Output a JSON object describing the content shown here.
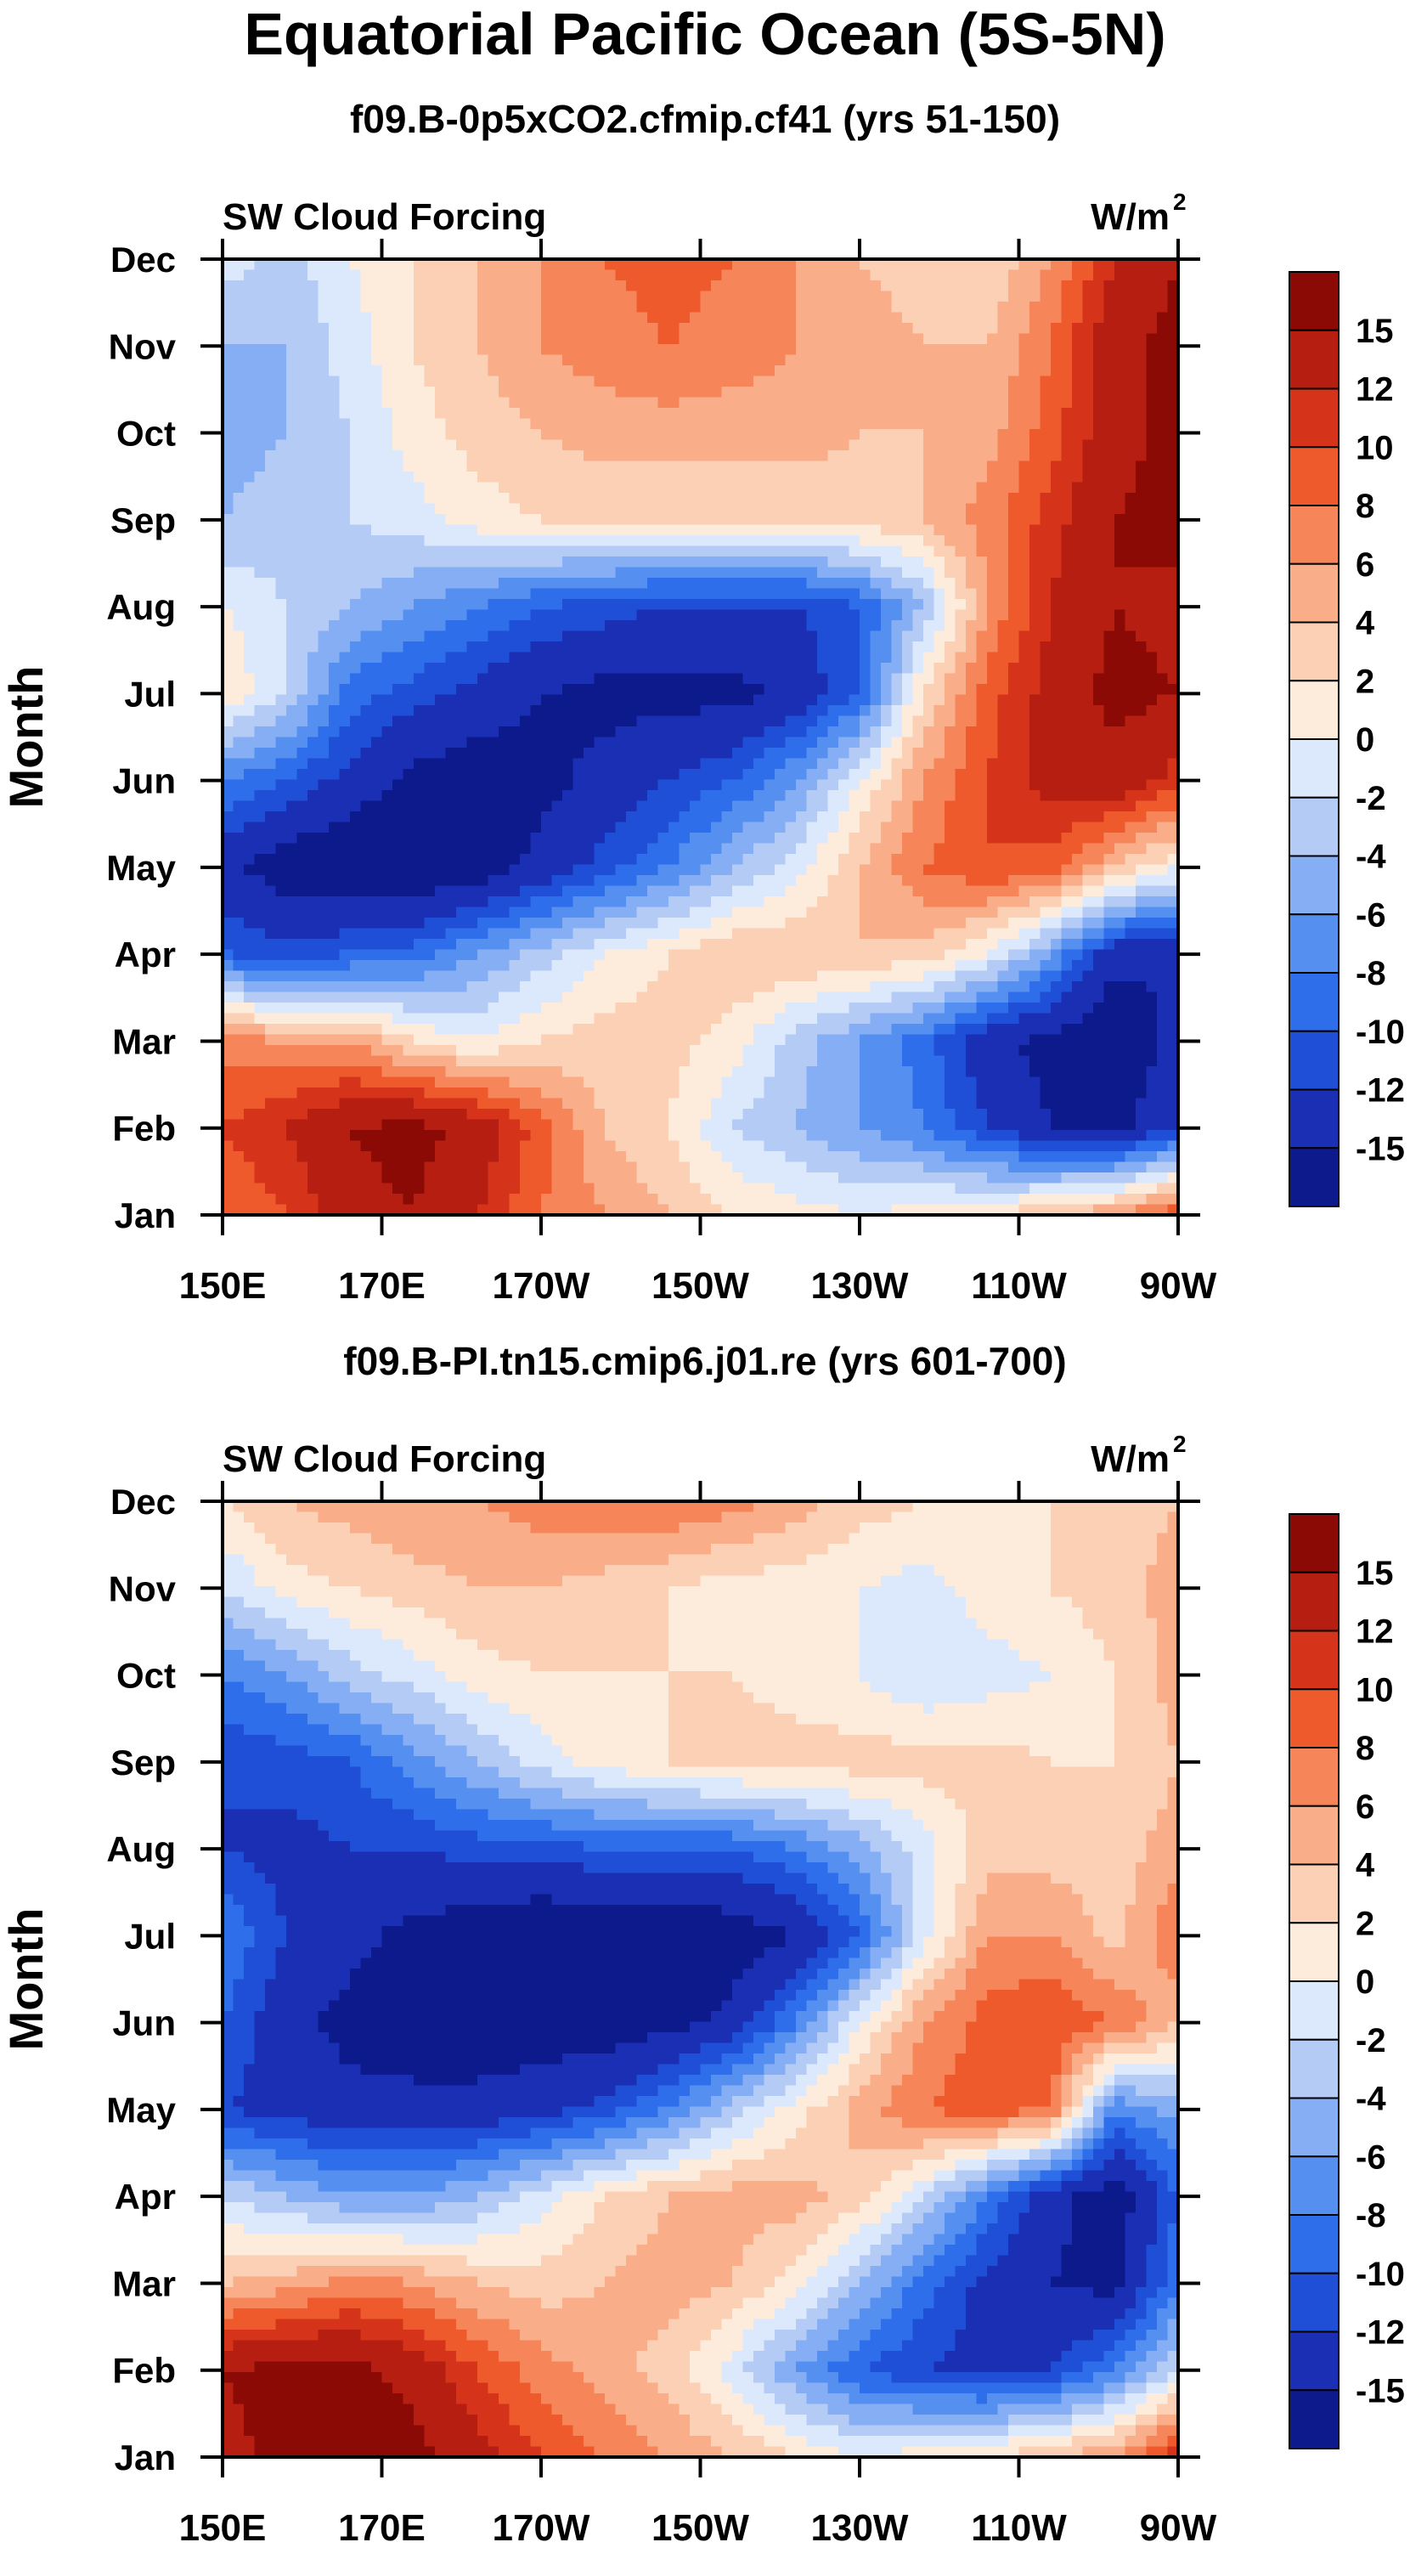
{
  "title": "Equatorial Pacific Ocean (5S-5N)",
  "colorbar": {
    "colors": [
      "#0d1a8c",
      "#1a2fb3",
      "#1f4fd6",
      "#2f6eeb",
      "#5590f0",
      "#86aef4",
      "#b4cbf6",
      "#dce8fb",
      "#fdebdc",
      "#fcd0b5",
      "#f9ad88",
      "#f6865a",
      "#ef5a2c",
      "#d5341a",
      "#b51e10",
      "#8b0a06"
    ],
    "labels": [
      "15",
      "12",
      "10",
      "8",
      "6",
      "4",
      "2",
      "0",
      "-2",
      "-4",
      "-6",
      "-8",
      "-10",
      "-12",
      "-15"
    ]
  },
  "chart_data": [
    {
      "type": "heatmap",
      "title": "f09.B-0p5xCO2.cfmip.cf41 (yrs 51-150)",
      "left_label": "SW Cloud Forcing",
      "units_label": "W/m",
      "units_sup": "2",
      "ylabel": "Month",
      "x_tick_labels": [
        "150E",
        "170E",
        "170W",
        "150W",
        "130W",
        "110W",
        "90W"
      ],
      "y_tick_labels": [
        "Dec",
        "Nov",
        "Oct",
        "Sep",
        "Aug",
        "Jul",
        "Jun",
        "May",
        "Apr",
        "Mar",
        "Feb",
        "Jan"
      ],
      "x_range": [
        "150E",
        "90W"
      ],
      "y_range": [
        "Jan",
        "Dec"
      ],
      "levels": [
        -15,
        -12,
        -10,
        -8,
        -6,
        -4,
        -2,
        0,
        2,
        4,
        6,
        8,
        10,
        12,
        15
      ],
      "grid": [
        [
          -1,
          -3,
          0,
          2,
          4,
          6,
          8,
          9,
          8,
          6,
          4,
          3,
          2,
          6,
          12,
          15
        ],
        [
          -4,
          -4,
          -1,
          2,
          4,
          6,
          7,
          8,
          7,
          6,
          5,
          4,
          4,
          8,
          14,
          16
        ],
        [
          -5,
          -4,
          -2,
          1,
          3,
          4,
          5,
          5,
          5,
          5,
          4,
          4,
          5,
          9,
          14,
          16
        ],
        [
          -4,
          -3,
          -2,
          -1,
          1,
          2,
          2,
          2,
          2,
          2,
          3,
          4,
          7,
          11,
          15,
          16
        ],
        [
          0,
          -2,
          -4,
          -6,
          -8,
          -10,
          -11,
          -12,
          -12,
          -12,
          -10,
          -4,
          6,
          12,
          15,
          14
        ],
        [
          2,
          -2,
          -9,
          -11,
          -13,
          -15,
          -16,
          -16,
          -16,
          -14,
          -10,
          2,
          9,
          13,
          16,
          15
        ],
        [
          -8,
          -10,
          -13,
          -16,
          -17,
          -16,
          -14,
          -12,
          -10,
          -6,
          0,
          6,
          10,
          13,
          14,
          11
        ],
        [
          -14,
          -17,
          -18,
          -18,
          -17,
          -14,
          -11,
          -8,
          -4,
          -1,
          4,
          8,
          10,
          9,
          4,
          0
        ],
        [
          -10,
          -11,
          -10,
          -9,
          -6,
          -3,
          0,
          2,
          4,
          4,
          4,
          3,
          0,
          -6,
          -14,
          -15
        ],
        [
          7,
          6,
          6,
          2,
          0,
          2,
          3,
          3,
          1,
          -3,
          -6,
          -9,
          -14,
          -16,
          -18,
          -14
        ],
        [
          10,
          12,
          15,
          16,
          14,
          9,
          4,
          2,
          -2,
          -4,
          -6,
          -8,
          -12,
          -15,
          -16,
          -12
        ],
        [
          8,
          10,
          14,
          15,
          12,
          8,
          6,
          4,
          2,
          1,
          0,
          1,
          2,
          4,
          6,
          10
        ]
      ]
    },
    {
      "type": "heatmap",
      "title": "f09.B-PI.tn15.cmip6.j01.re (yrs 601-700)",
      "left_label": "SW Cloud Forcing",
      "units_label": "W/m",
      "units_sup": "2",
      "ylabel": "Month",
      "x_tick_labels": [
        "150E",
        "170E",
        "170W",
        "150W",
        "130W",
        "110W",
        "90W"
      ],
      "y_tick_labels": [
        "Dec",
        "Nov",
        "Oct",
        "Sep",
        "Aug",
        "Jul",
        "Jun",
        "May",
        "Apr",
        "Mar",
        "Feb",
        "Jan"
      ],
      "x_range": [
        "150E",
        "90W"
      ],
      "y_range": [
        "Jan",
        "Dec"
      ],
      "levels": [
        -15,
        -12,
        -10,
        -8,
        -6,
        -4,
        -2,
        0,
        2,
        4,
        6,
        8,
        10,
        12,
        15
      ],
      "grid": [
        [
          2,
          4,
          5,
          6,
          6,
          7,
          8,
          8,
          7,
          5,
          3,
          2,
          2,
          2,
          3,
          4
        ],
        [
          -2,
          1,
          2,
          3,
          4,
          4,
          3,
          2,
          1,
          1,
          0,
          -1,
          1,
          2,
          3,
          5
        ],
        [
          -8,
          -6,
          -3,
          -1,
          1,
          2,
          2,
          2,
          2,
          1,
          0,
          -2,
          -1,
          0,
          2,
          5
        ],
        [
          -12,
          -11,
          -10,
          -7,
          -4,
          -1,
          1,
          2,
          3,
          3,
          3,
          3,
          3,
          2,
          2,
          4
        ],
        [
          -12,
          -13,
          -12,
          -12,
          -11,
          -11,
          -10,
          -10,
          -10,
          -8,
          -5,
          -1,
          3,
          3,
          3,
          5
        ],
        [
          -8,
          -12,
          -14,
          -16,
          -17,
          -18,
          -18,
          -18,
          -17,
          -15,
          -10,
          -1,
          6,
          6,
          3,
          8
        ],
        [
          -10,
          -14,
          -16,
          -17,
          -17,
          -17,
          -17,
          -16,
          -14,
          -8,
          0,
          6,
          9,
          10,
          8,
          4
        ],
        [
          -12,
          -13,
          -14,
          -14,
          -14,
          -13,
          -11,
          -8,
          -3,
          1,
          5,
          8,
          9,
          8,
          -8,
          -5
        ],
        [
          -2,
          -4,
          -6,
          -6,
          -4,
          -1,
          2,
          4,
          5,
          5,
          3,
          -2,
          -8,
          -14,
          -17,
          -10
        ],
        [
          4,
          5,
          7,
          6,
          4,
          3,
          4,
          5,
          4,
          1,
          -4,
          -9,
          -13,
          -15,
          -16,
          -8
        ],
        [
          15,
          16,
          16,
          14,
          10,
          7,
          5,
          3,
          -1,
          -6,
          -10,
          -12,
          -13,
          -12,
          -8,
          -2
        ],
        [
          14,
          16,
          17,
          16,
          13,
          10,
          8,
          6,
          4,
          2,
          0,
          1,
          2,
          4,
          6,
          12
        ]
      ]
    }
  ]
}
